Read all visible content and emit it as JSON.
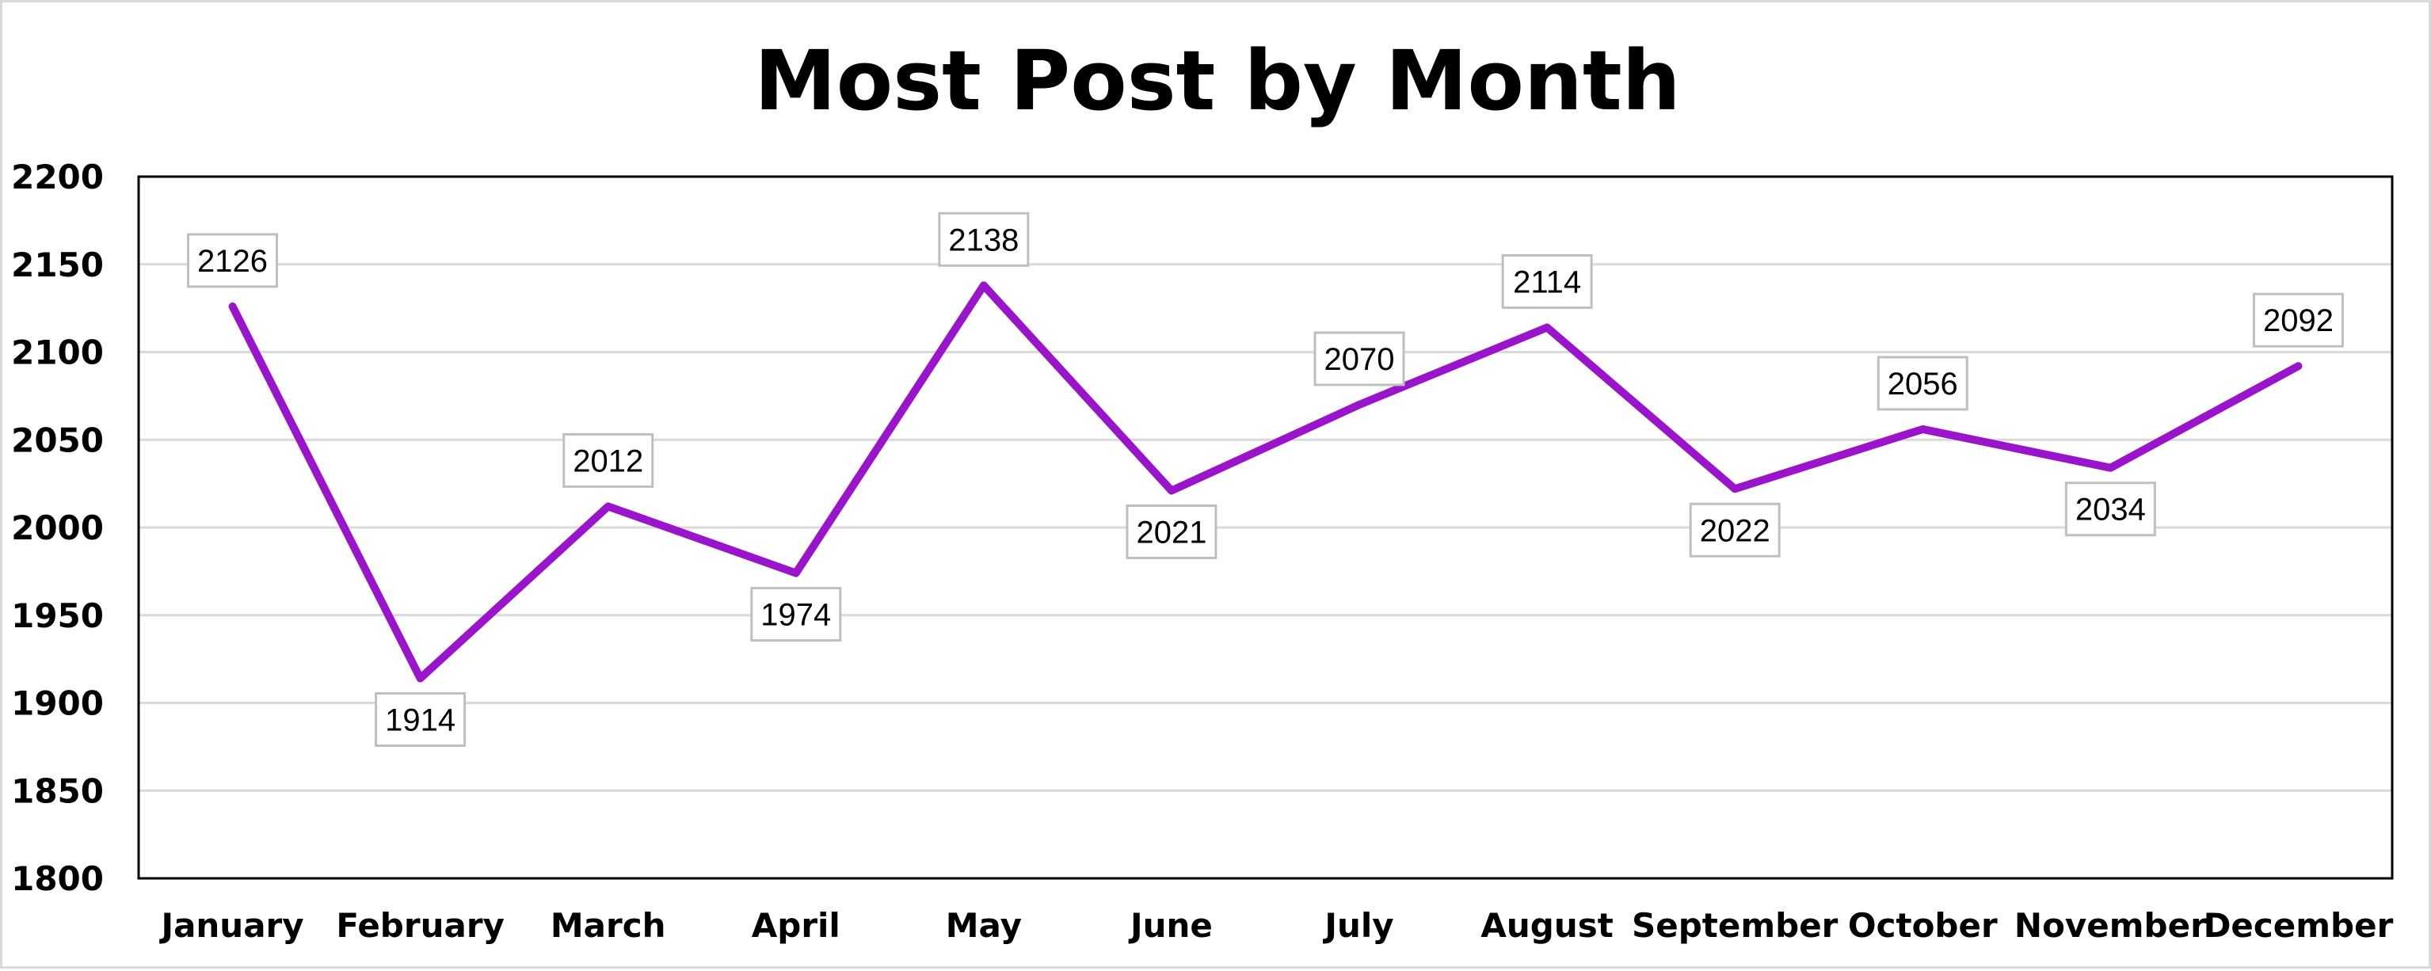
{
  "chart_data": {
    "type": "line",
    "title": "Most Post by Month",
    "xlabel": "",
    "ylabel": "",
    "categories": [
      "January",
      "February",
      "March",
      "April",
      "May",
      "June",
      "July",
      "August",
      "September",
      "October",
      "November",
      "December"
    ],
    "series": [
      {
        "values": [
          2126,
          1914,
          2012,
          1974,
          2138,
          2021,
          2070,
          2114,
          2022,
          2056,
          2034,
          2092
        ],
        "color": "#9a14cc"
      }
    ],
    "ylim": [
      1800,
      2200
    ],
    "yticks": [
      1800,
      1850,
      1900,
      1950,
      2000,
      2050,
      2100,
      2150,
      2200
    ],
    "grid": true,
    "legend": "none",
    "data_label_placement": [
      "above",
      "below",
      "above",
      "below",
      "above",
      "below",
      "above",
      "above",
      "below",
      "above",
      "below",
      "above"
    ]
  }
}
